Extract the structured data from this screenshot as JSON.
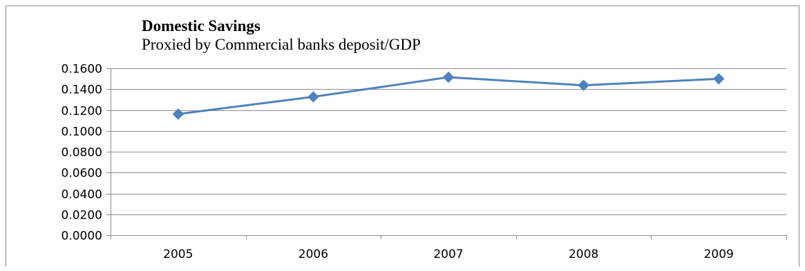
{
  "chart_data": {
    "type": "line",
    "title": "Domestic Savings",
    "subtitle": "Proxied by Commercial banks deposit/GDP",
    "categories": [
      "2005",
      "2006",
      "2007",
      "2008",
      "2009"
    ],
    "series": [
      {
        "values": [
          0.1161,
          0.1326,
          0.1514,
          0.1437,
          0.1499
        ],
        "color": "#4f81bd",
        "marker": "diamond"
      }
    ],
    "ylim": [
      0,
      0.16
    ],
    "ytick_step": 0.02,
    "ytick_labels": [
      "0.0000",
      "0.0200",
      "0.0400",
      "0.0600",
      "0.0800",
      "0.1000",
      "0.1200",
      "0.1400",
      "0.1600"
    ],
    "grid": true,
    "legend": "none",
    "xlabel": "",
    "ylabel": ""
  }
}
